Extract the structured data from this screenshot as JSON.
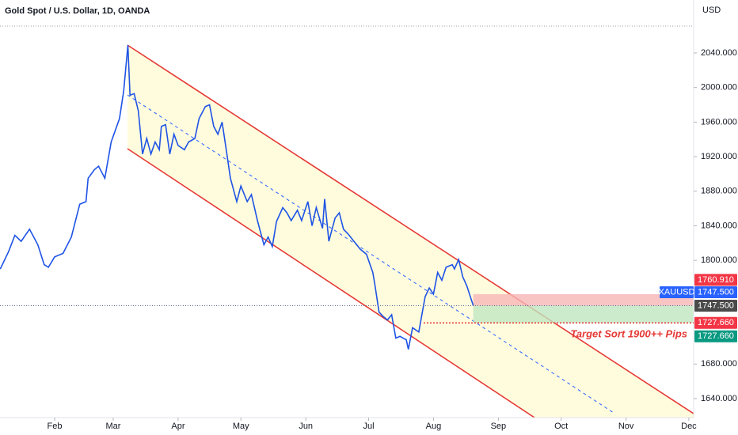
{
  "chart_data": {
    "type": "line",
    "title": "Gold Spot / U.S. Dollar, 1D, OANDA",
    "y_unit": "USD",
    "annotation": "Target Sort 1900++ Pips",
    "x": [
      5,
      9,
      12,
      15,
      19,
      23,
      26,
      28,
      31,
      35,
      39,
      43,
      46,
      47,
      50,
      52,
      55,
      58,
      62,
      64,
      66,
      67,
      69,
      71,
      73,
      75,
      77,
      79,
      81,
      82,
      84,
      86,
      88,
      90,
      93,
      95,
      98,
      100,
      103,
      105,
      107,
      109,
      111,
      113,
      115,
      118,
      120,
      123,
      125,
      128,
      131,
      133,
      135,
      137,
      140,
      142,
      144,
      147,
      149,
      152,
      154,
      156,
      159,
      160,
      162,
      165,
      167,
      169,
      171,
      174,
      177,
      180,
      183,
      184,
      186,
      188,
      190,
      192,
      194,
      196,
      199,
      200,
      202,
      205,
      206,
      208,
      210,
      212,
      214,
      216,
      218,
      221,
      222,
      224,
      226,
      228,
      231
    ],
    "series": [
      {
        "name": "XAUUSD",
        "color": "#1e53e5",
        "last_label": "1747.500",
        "values": [
          1790,
          1810,
          1829,
          1822,
          1836,
          1818,
          1795,
          1792,
          1804,
          1808,
          1827,
          1865,
          1868,
          1895,
          1905,
          1909,
          1895,
          1937,
          1964,
          1996,
          2049,
          1991,
          1993,
          1973,
          1923,
          1941,
          1923,
          1937,
          1928,
          1955,
          1957,
          1923,
          1946,
          1933,
          1928,
          1937,
          1941,
          1964,
          1978,
          1980,
          1955,
          1946,
          1960,
          1928,
          1895,
          1868,
          1886,
          1868,
          1876,
          1845,
          1818,
          1827,
          1816,
          1845,
          1861,
          1855,
          1846,
          1858,
          1846,
          1868,
          1840,
          1861,
          1837,
          1871,
          1822,
          1849,
          1855,
          1836,
          1831,
          1822,
          1813,
          1807,
          1786,
          1772,
          1740,
          1735,
          1731,
          1737,
          1710,
          1712,
          1708,
          1697,
          1722,
          1717,
          1731,
          1758,
          1768,
          1761,
          1786,
          1777,
          1792,
          1795,
          1790,
          1801,
          1781,
          1770,
          1747.5
        ]
      }
    ],
    "xlim": [
      4.9,
      336.3
    ],
    "xticks": [
      {
        "value": 31,
        "label": "Feb"
      },
      {
        "value": 59,
        "label": "Mar"
      },
      {
        "value": 90,
        "label": "Apr"
      },
      {
        "value": 120,
        "label": "May"
      },
      {
        "value": 151,
        "label": "Jun"
      },
      {
        "value": 181,
        "label": "Jul"
      },
      {
        "value": 212,
        "label": "Aug"
      },
      {
        "value": 243,
        "label": "Sep"
      },
      {
        "value": 273,
        "label": "Oct"
      },
      {
        "value": 304,
        "label": "Nov"
      },
      {
        "value": 334,
        "label": "Dec"
      }
    ],
    "ylim": [
      1618,
      2101.3
    ],
    "yticks": [
      {
        "value": 1640,
        "label": "1640.000"
      },
      {
        "value": 1680,
        "label": "1680.000"
      },
      {
        "value": 1800,
        "label": "1800.000"
      },
      {
        "value": 1840,
        "label": "1840.000"
      },
      {
        "value": 1880,
        "label": "1880.000"
      },
      {
        "value": 1920,
        "label": "1920.000"
      },
      {
        "value": 1960,
        "label": "1960.000"
      },
      {
        "value": 2000,
        "label": "2000.000"
      },
      {
        "value": 2040,
        "label": "2040.000"
      }
    ],
    "position": {
      "start_x": 231,
      "stop": {
        "value": 1760.91,
        "label": "1760.910"
      },
      "entry": {
        "value": 1747.5,
        "label": "1747.500"
      },
      "target": {
        "value": 1727.66,
        "label": "1727.660"
      }
    }
  }
}
